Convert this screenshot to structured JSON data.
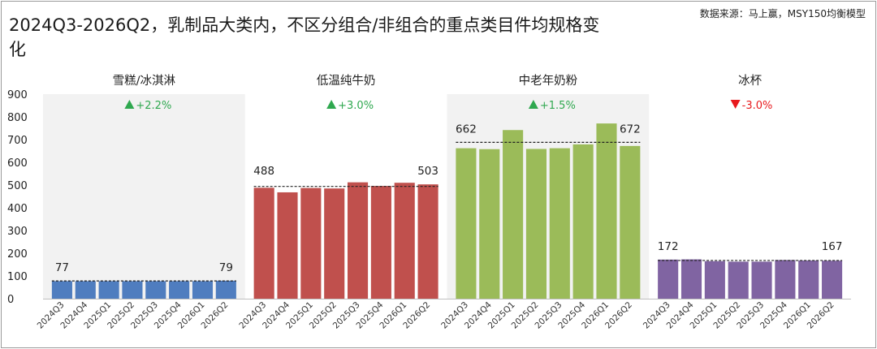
{
  "header": {
    "title": "2024Q3-2026Q2，乳制品大类内，不区分组合/非组合的重点类目件均规格变化",
    "source": "数据来源：马上赢，MSY150均衡模型"
  },
  "chart_data": {
    "type": "bar",
    "ylim": [
      0,
      900
    ],
    "yticks": [
      0,
      100,
      200,
      300,
      400,
      500,
      600,
      700,
      800,
      900
    ],
    "categories": [
      "2024Q3",
      "2024Q4",
      "2025Q1",
      "2025Q2",
      "2025Q3",
      "2025Q4",
      "2026Q1",
      "2026Q2"
    ],
    "panels": [
      {
        "name": "雪糕/冰淇淋",
        "color": "#4f7dbf",
        "shaded": true,
        "change": "+2.2%",
        "direction": "up",
        "values": [
          77,
          77,
          77,
          77,
          77,
          77,
          77,
          79
        ],
        "avg": 78,
        "first_label": "77",
        "last_label": "79"
      },
      {
        "name": "低温纯牛奶",
        "color": "#c0504d",
        "shaded": false,
        "change": "+3.0%",
        "direction": "up",
        "values": [
          488,
          468,
          487,
          485,
          512,
          496,
          510,
          503
        ],
        "avg": 494,
        "first_label": "488",
        "last_label": "503"
      },
      {
        "name": "中老年奶粉",
        "color": "#9bbb59",
        "shaded": true,
        "change": "+1.5%",
        "direction": "up",
        "values": [
          662,
          658,
          742,
          659,
          662,
          679,
          771,
          672
        ],
        "avg": 688,
        "first_label": "662",
        "last_label": "672"
      },
      {
        "name": "冰杯",
        "color": "#8064a2",
        "shaded": false,
        "change": "-3.0%",
        "direction": "down",
        "values": [
          172,
          173,
          165,
          163,
          163,
          170,
          168,
          167
        ],
        "avg": 168,
        "first_label": "172",
        "last_label": "167"
      }
    ],
    "up_color": "#2fa84f",
    "down_color": "#e8191d"
  }
}
